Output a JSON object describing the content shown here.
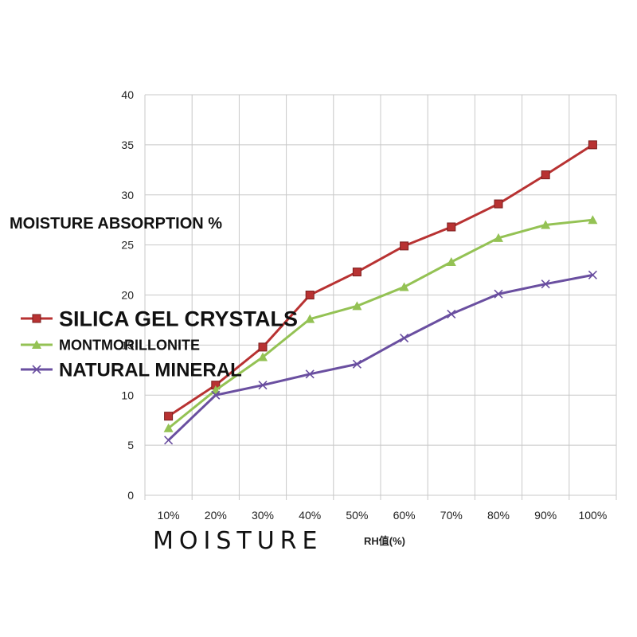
{
  "chart_data": {
    "type": "line",
    "categories": [
      "10%",
      "20%",
      "30%",
      "40%",
      "50%",
      "60%",
      "70%",
      "80%",
      "90%",
      "100%"
    ],
    "series": [
      {
        "name": "SILICA GEL CRYSTALS",
        "color": "#b83232",
        "marker": "square",
        "values": [
          7.9,
          11,
          14.8,
          20,
          22.3,
          24.9,
          26.8,
          29.1,
          32,
          35
        ]
      },
      {
        "name": "MONTMORILLONITE",
        "color": "#94c254",
        "marker": "triangle",
        "values": [
          6.7,
          10.5,
          13.8,
          17.6,
          18.9,
          20.8,
          23.3,
          25.7,
          27,
          27.5
        ]
      },
      {
        "name": "NATURAL MINERAL",
        "color": "#6a4fa0",
        "marker": "x",
        "values": [
          5.5,
          10,
          11,
          12.1,
          13.1,
          15.7,
          18.1,
          20.1,
          21.1,
          22
        ]
      }
    ],
    "ylim": [
      0,
      40
    ],
    "yticks": [
      0,
      5,
      10,
      15,
      20,
      25,
      30,
      35,
      40
    ],
    "ylabel": "MOISTURE ABSORPTION %",
    "xlabel_main": "MOISTURE",
    "xlabel_unit": "RH值(%)",
    "grid": true,
    "legend_position": "left"
  }
}
